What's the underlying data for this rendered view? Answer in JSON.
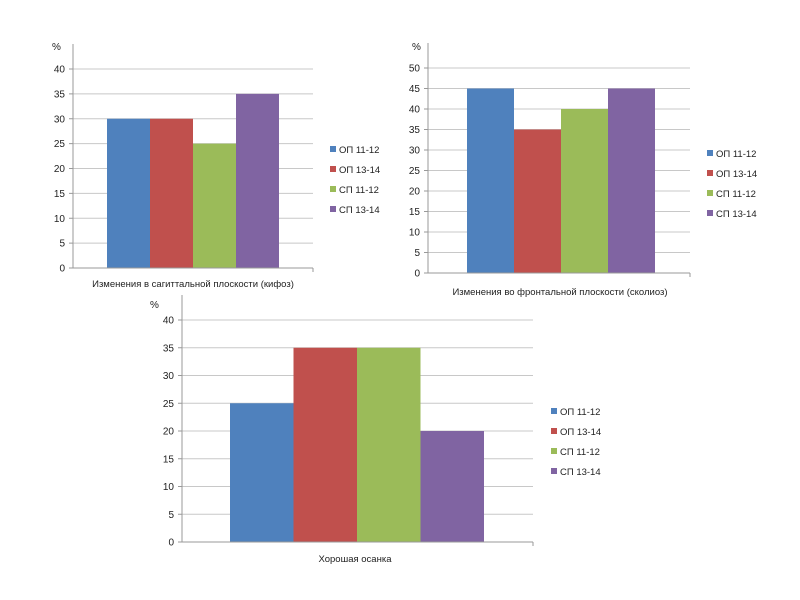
{
  "chart_data": [
    {
      "type": "bar",
      "title": "",
      "ylabel": "%",
      "xlabel": "Изменения в сагиттальной плоскости (кифоз)",
      "ylim": [
        0,
        40
      ],
      "yticks": [
        0,
        5,
        10,
        15,
        20,
        25,
        30,
        35,
        40
      ],
      "grid": true,
      "legend": "right",
      "series": [
        {
          "name": "ОП 11-12",
          "values": [
            30
          ],
          "color": "#4f81bd"
        },
        {
          "name": "ОП 13-14",
          "values": [
            30
          ],
          "color": "#c0504d"
        },
        {
          "name": "СП 11-12",
          "values": [
            25
          ],
          "color": "#9bbb59"
        },
        {
          "name": "СП 13-14",
          "values": [
            35
          ],
          "color": "#8064a2"
        }
      ]
    },
    {
      "type": "bar",
      "title": "",
      "ylabel": "%",
      "xlabel": "Изменения во фронтальной плоскости (сколиоз)",
      "ylim": [
        0,
        50
      ],
      "yticks": [
        0,
        5,
        10,
        15,
        20,
        25,
        30,
        35,
        40,
        45,
        50
      ],
      "grid": true,
      "legend": "right",
      "series": [
        {
          "name": "ОП 11-12",
          "values": [
            45
          ],
          "color": "#4f81bd"
        },
        {
          "name": "ОП 13-14",
          "values": [
            35
          ],
          "color": "#c0504d"
        },
        {
          "name": "СП 11-12",
          "values": [
            40
          ],
          "color": "#9bbb59"
        },
        {
          "name": "СП 13-14",
          "values": [
            45
          ],
          "color": "#8064a2"
        }
      ]
    },
    {
      "type": "bar",
      "title": "",
      "ylabel": "%",
      "xlabel": "Хорошая осанка",
      "ylim": [
        0,
        40
      ],
      "yticks": [
        0,
        5,
        10,
        15,
        20,
        25,
        30,
        35,
        40
      ],
      "grid": true,
      "legend": "right",
      "series": [
        {
          "name": "ОП 11-12",
          "values": [
            25
          ],
          "color": "#4f81bd"
        },
        {
          "name": "ОП 13-14",
          "values": [
            35
          ],
          "color": "#c0504d"
        },
        {
          "name": "СП 11-12",
          "values": [
            35
          ],
          "color": "#9bbb59"
        },
        {
          "name": "СП 13-14",
          "values": [
            20
          ],
          "color": "#8064a2"
        }
      ]
    }
  ]
}
